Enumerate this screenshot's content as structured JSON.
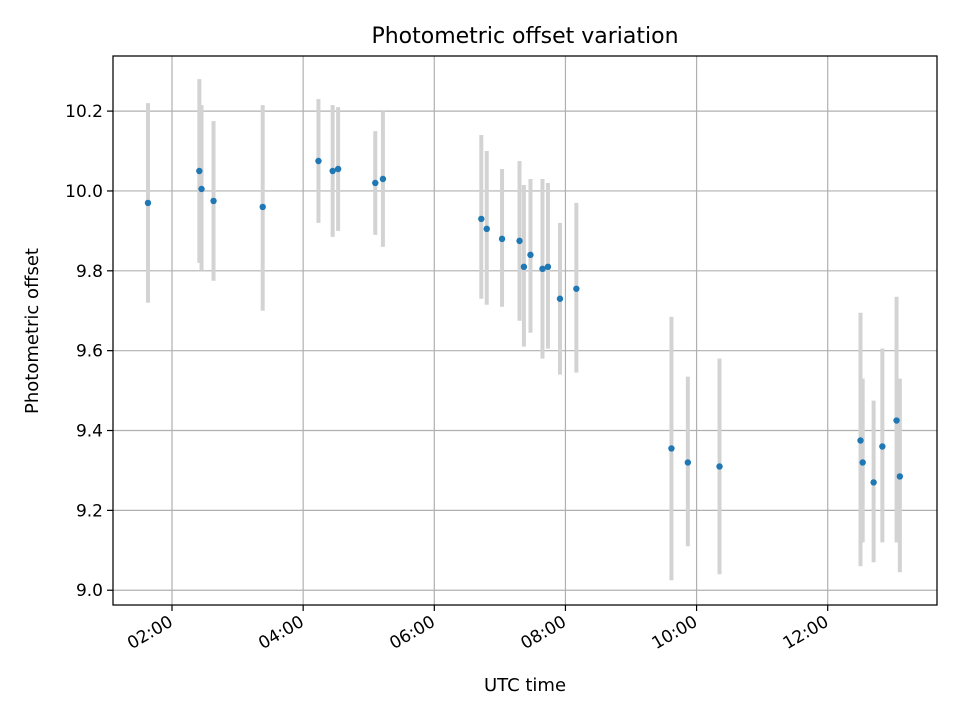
{
  "chart_data": {
    "type": "scatter",
    "title": "Photometric offset variation",
    "xlabel": "UTC time",
    "ylabel": "Photometric offset",
    "x_tick_labels": [
      "02:00",
      "04:00",
      "06:00",
      "08:00",
      "10:00",
      "12:00"
    ],
    "x_tick_values": [
      "02:00",
      "04:00",
      "06:00",
      "08:00",
      "10:00",
      "12:00"
    ],
    "y_tick_values": [
      9.0,
      9.2,
      9.4,
      9.6,
      9.8,
      10.0,
      10.2
    ],
    "xlim": [
      "01:06",
      "13:40"
    ],
    "ylim": [
      8.963,
      10.338
    ],
    "grid": true,
    "point_color": "#1f77b4",
    "errorbar_color": "#d3d3d3",
    "points": [
      {
        "x": "01:38",
        "y": 9.97,
        "ylow": 9.72,
        "yhigh": 10.22
      },
      {
        "x": "02:25",
        "y": 10.05,
        "ylow": 9.82,
        "yhigh": 10.28
      },
      {
        "x": "02:27",
        "y": 10.005,
        "ylow": 9.8,
        "yhigh": 10.215
      },
      {
        "x": "02:38",
        "y": 9.975,
        "ylow": 9.775,
        "yhigh": 10.175
      },
      {
        "x": "03:23",
        "y": 9.96,
        "ylow": 9.7,
        "yhigh": 10.215
      },
      {
        "x": "04:14",
        "y": 10.075,
        "ylow": 9.92,
        "yhigh": 10.23
      },
      {
        "x": "04:27",
        "y": 10.05,
        "ylow": 9.885,
        "yhigh": 10.215
      },
      {
        "x": "04:32",
        "y": 10.055,
        "ylow": 9.9,
        "yhigh": 10.21
      },
      {
        "x": "05:06",
        "y": 10.02,
        "ylow": 9.89,
        "yhigh": 10.15
      },
      {
        "x": "05:13",
        "y": 10.03,
        "ylow": 9.86,
        "yhigh": 10.2
      },
      {
        "x": "06:43",
        "y": 9.93,
        "ylow": 9.73,
        "yhigh": 10.14
      },
      {
        "x": "06:48",
        "y": 9.905,
        "ylow": 9.715,
        "yhigh": 10.1
      },
      {
        "x": "07:02",
        "y": 9.88,
        "ylow": 9.71,
        "yhigh": 10.055
      },
      {
        "x": "07:18",
        "y": 9.875,
        "ylow": 9.675,
        "yhigh": 10.075
      },
      {
        "x": "07:22",
        "y": 9.81,
        "ylow": 9.61,
        "yhigh": 10.015
      },
      {
        "x": "07:28",
        "y": 9.84,
        "ylow": 9.645,
        "yhigh": 10.03
      },
      {
        "x": "07:39",
        "y": 9.805,
        "ylow": 9.58,
        "yhigh": 10.03
      },
      {
        "x": "07:44",
        "y": 9.81,
        "ylow": 9.605,
        "yhigh": 10.02
      },
      {
        "x": "07:55",
        "y": 9.73,
        "ylow": 9.54,
        "yhigh": 9.92
      },
      {
        "x": "08:10",
        "y": 9.755,
        "ylow": 9.545,
        "yhigh": 9.97
      },
      {
        "x": "09:37",
        "y": 9.355,
        "ylow": 9.025,
        "yhigh": 9.685
      },
      {
        "x": "09:52",
        "y": 9.32,
        "ylow": 9.11,
        "yhigh": 9.535
      },
      {
        "x": "10:21",
        "y": 9.31,
        "ylow": 9.04,
        "yhigh": 9.58
      },
      {
        "x": "12:30",
        "y": 9.375,
        "ylow": 9.06,
        "yhigh": 9.695
      },
      {
        "x": "12:32",
        "y": 9.32,
        "ylow": 9.12,
        "yhigh": 9.53
      },
      {
        "x": "12:42",
        "y": 9.27,
        "ylow": 9.07,
        "yhigh": 9.475
      },
      {
        "x": "12:50",
        "y": 9.36,
        "ylow": 9.12,
        "yhigh": 9.605
      },
      {
        "x": "13:03",
        "y": 9.425,
        "ylow": 9.12,
        "yhigh": 9.735
      },
      {
        "x": "13:06",
        "y": 9.285,
        "ylow": 9.045,
        "yhigh": 9.53
      }
    ]
  }
}
